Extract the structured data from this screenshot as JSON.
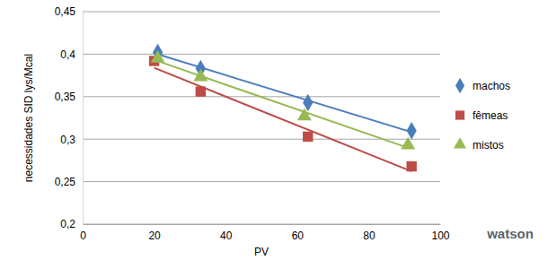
{
  "chart_data": {
    "type": "scatter",
    "x_label": "PV",
    "y_label": "necessidades SID lys/Mcal",
    "xlim": [
      0,
      100
    ],
    "xticks": [
      0,
      20,
      40,
      60,
      80,
      100
    ],
    "ylim": [
      0.2,
      0.45
    ],
    "yticks": [
      {
        "value": 0.2,
        "label": "0,2"
      },
      {
        "value": 0.25,
        "label": "0,25"
      },
      {
        "value": 0.3,
        "label": "0,3"
      },
      {
        "value": 0.35,
        "label": "0,35"
      },
      {
        "value": 0.4,
        "label": "0,4"
      },
      {
        "value": 0.45,
        "label": "0,45"
      }
    ],
    "grid": true,
    "legend": "right",
    "series": [
      {
        "name": "machos",
        "color": "#4a7ebb",
        "marker": "diamond",
        "line_style": "solid",
        "x": [
          21,
          33,
          63,
          92
        ],
        "values": [
          0.402,
          0.383,
          0.343,
          0.31
        ]
      },
      {
        "name": "fêmeas",
        "color": "#be4b48",
        "marker": "square",
        "line_style": "solid",
        "x": [
          20,
          33,
          63,
          92
        ],
        "values": [
          0.392,
          0.356,
          0.303,
          0.268
        ]
      },
      {
        "name": "mistos",
        "color": "#98b954",
        "marker": "triangle",
        "line_style": "solid",
        "x": [
          21,
          33,
          62,
          91
        ],
        "values": [
          0.395,
          0.373,
          0.327,
          0.293
        ]
      }
    ],
    "annotations": [
      "watson"
    ]
  }
}
